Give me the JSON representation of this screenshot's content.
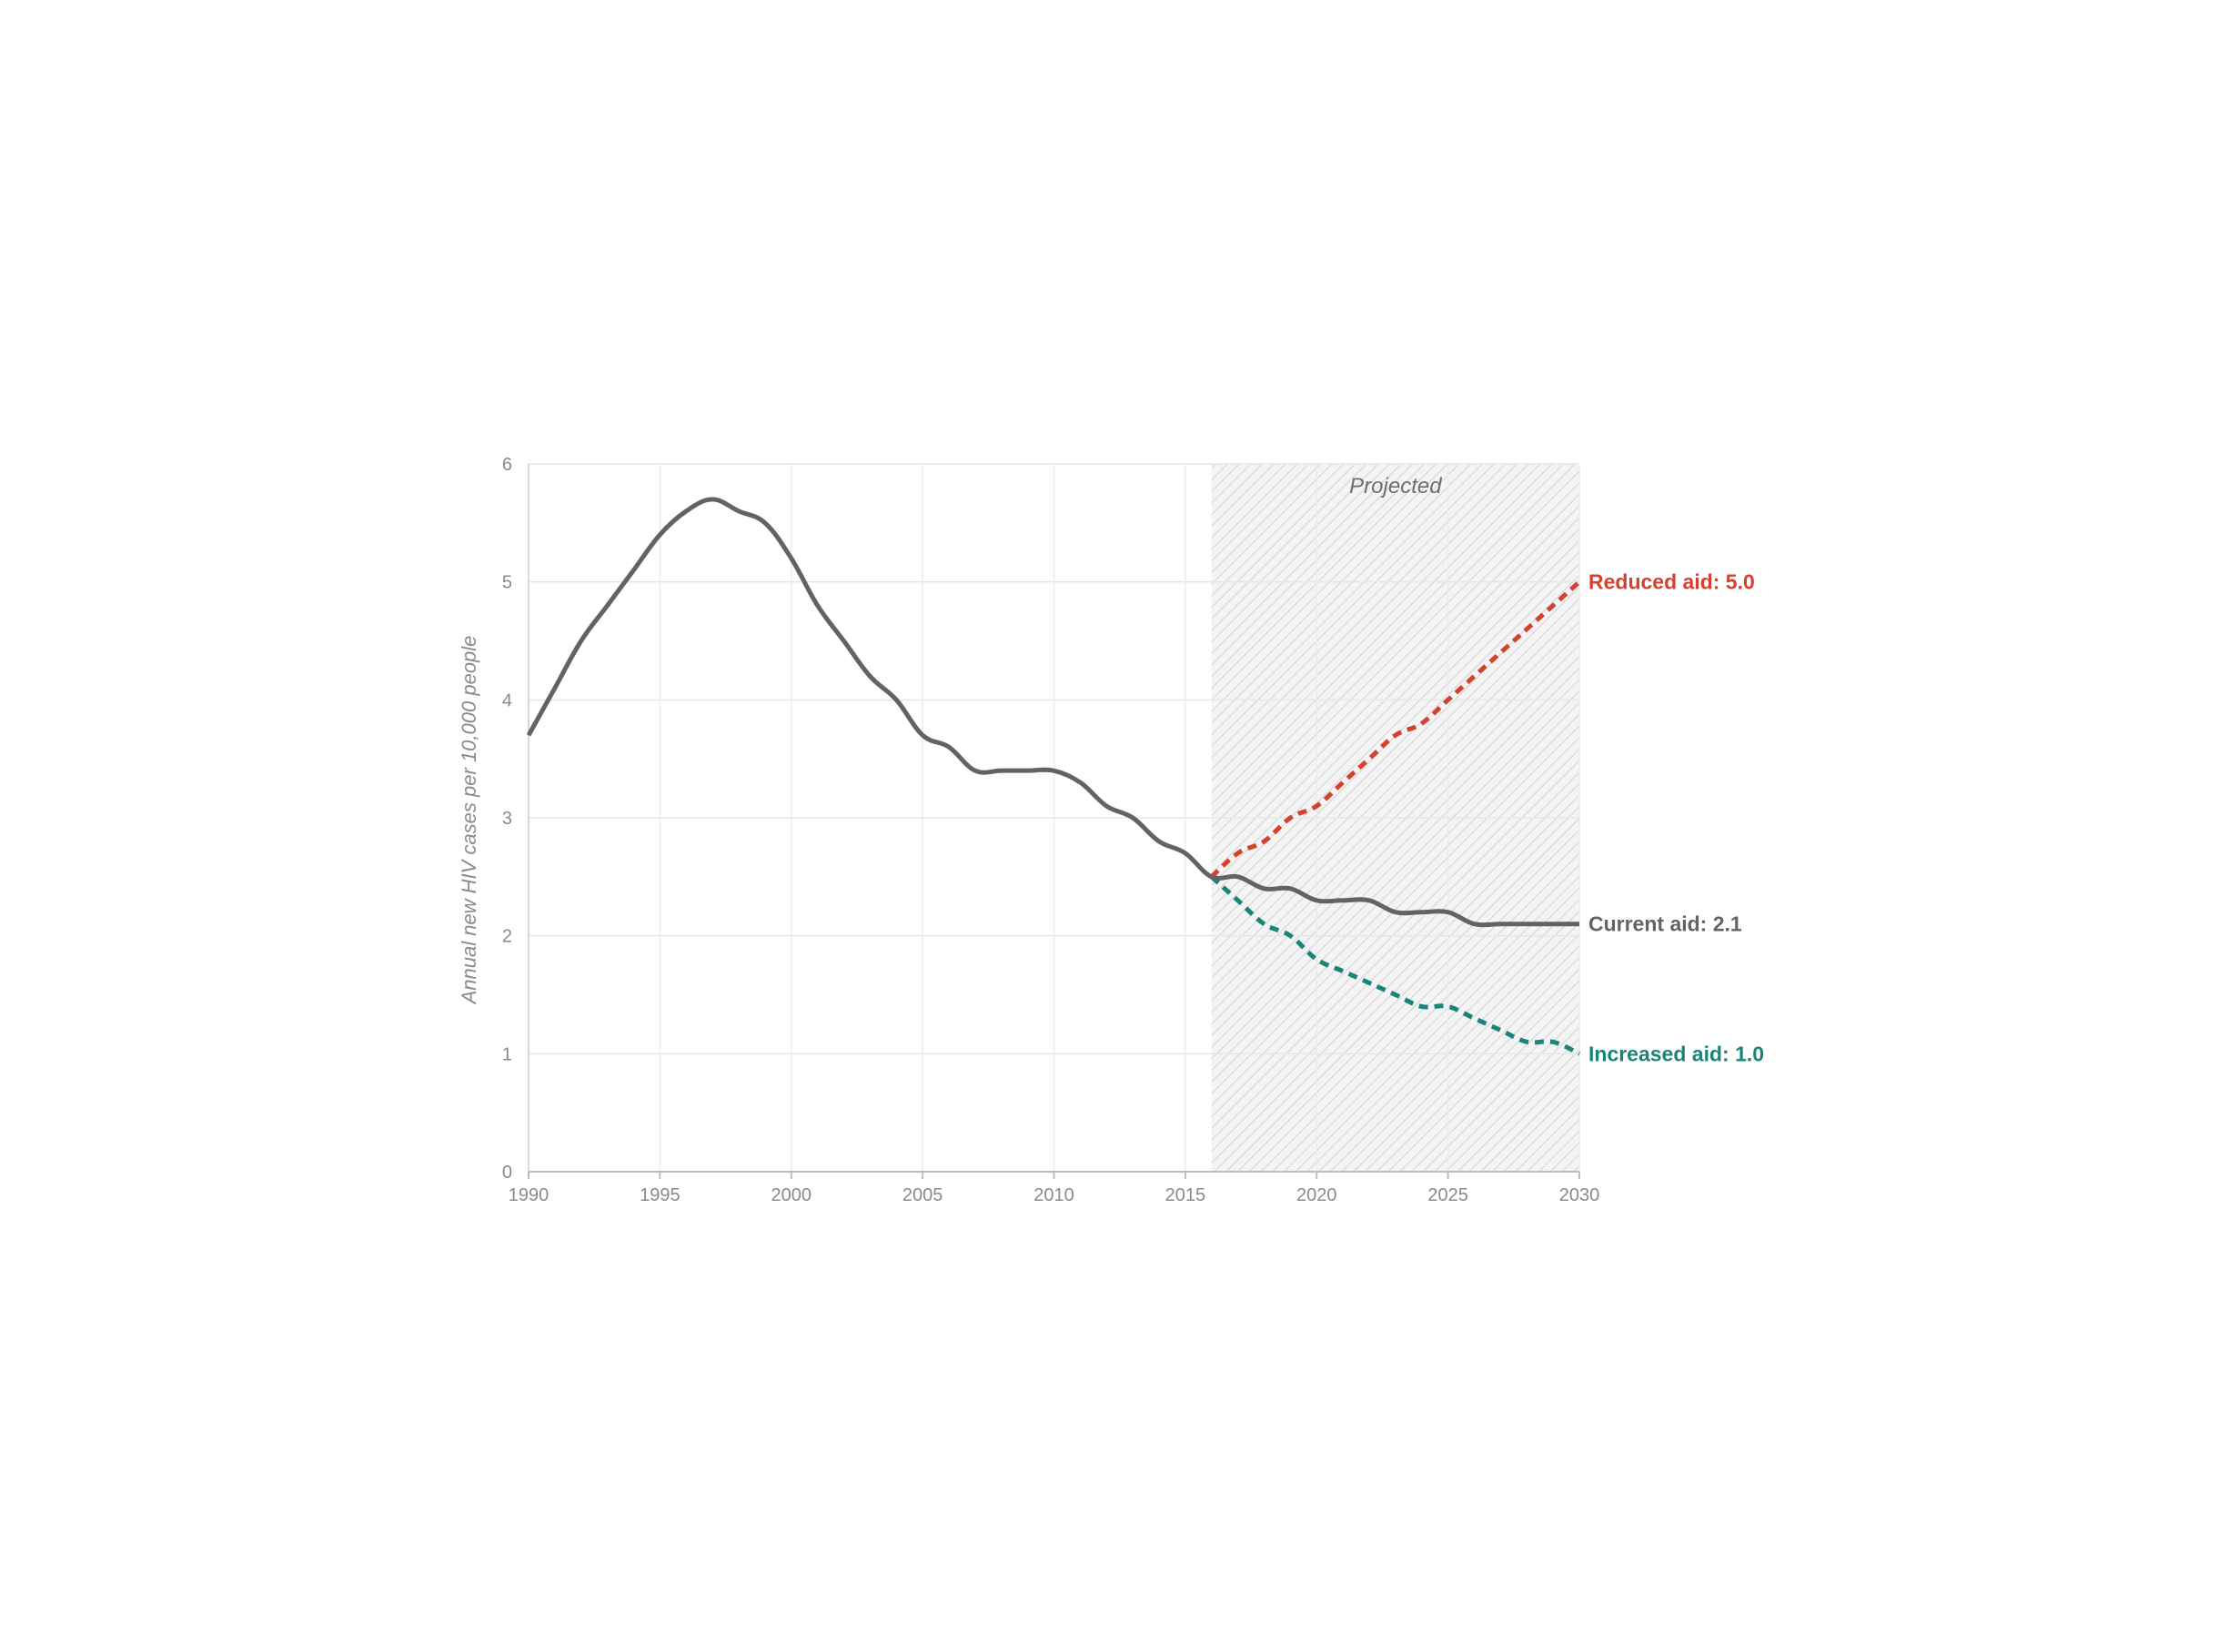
{
  "chart_data": {
    "type": "line",
    "title": "",
    "xlabel": "",
    "ylabel": "Annual new HIV cases per 10,000 people",
    "xlim": [
      1990,
      2030
    ],
    "ylim": [
      0,
      6
    ],
    "x_ticks": [
      1990,
      1995,
      2000,
      2005,
      2010,
      2015,
      2020,
      2025,
      2030
    ],
    "y_ticks": [
      0,
      1,
      2,
      3,
      4,
      5,
      6
    ],
    "grid": true,
    "projected_region": {
      "label": "Projected",
      "from": 2016,
      "to": 2030
    },
    "series": [
      {
        "name": "Current aid",
        "label": "Current aid: 2.1",
        "color": "#636363",
        "style": "solid",
        "x": [
          1990,
          1991,
          1992,
          1993,
          1994,
          1995,
          1996,
          1997,
          1998,
          1999,
          2000,
          2001,
          2002,
          2003,
          2004,
          2005,
          2006,
          2007,
          2008,
          2009,
          2010,
          2011,
          2012,
          2013,
          2014,
          2015,
          2016,
          2017,
          2018,
          2019,
          2020,
          2021,
          2022,
          2023,
          2024,
          2025,
          2026,
          2027,
          2028,
          2029,
          2030
        ],
        "values": [
          3.7,
          4.1,
          4.5,
          4.8,
          5.1,
          5.4,
          5.6,
          5.7,
          5.6,
          5.5,
          5.2,
          4.8,
          4.5,
          4.2,
          4.0,
          3.7,
          3.6,
          3.4,
          3.4,
          3.4,
          3.4,
          3.3,
          3.1,
          3.0,
          2.8,
          2.7,
          2.5,
          2.5,
          2.4,
          2.4,
          2.3,
          2.3,
          2.3,
          2.2,
          2.2,
          2.2,
          2.1,
          2.1,
          2.1,
          2.1,
          2.1
        ]
      },
      {
        "name": "Reduced aid",
        "label": "Reduced aid: 5.0",
        "color": "#d4412e",
        "style": "dashed",
        "x": [
          2016,
          2017,
          2018,
          2019,
          2020,
          2021,
          2022,
          2023,
          2024,
          2025,
          2026,
          2027,
          2028,
          2029,
          2030
        ],
        "values": [
          2.5,
          2.7,
          2.8,
          3.0,
          3.1,
          3.3,
          3.5,
          3.7,
          3.8,
          4.0,
          4.2,
          4.4,
          4.6,
          4.8,
          5.0
        ]
      },
      {
        "name": "Increased aid",
        "label": "Increased aid: 1.0",
        "color": "#1a8478",
        "style": "dashed",
        "x": [
          2016,
          2017,
          2018,
          2019,
          2020,
          2021,
          2022,
          2023,
          2024,
          2025,
          2026,
          2027,
          2028,
          2029,
          2030
        ],
        "values": [
          2.5,
          2.3,
          2.1,
          2.0,
          1.8,
          1.7,
          1.6,
          1.5,
          1.4,
          1.4,
          1.3,
          1.2,
          1.1,
          1.1,
          1.0
        ]
      }
    ]
  }
}
